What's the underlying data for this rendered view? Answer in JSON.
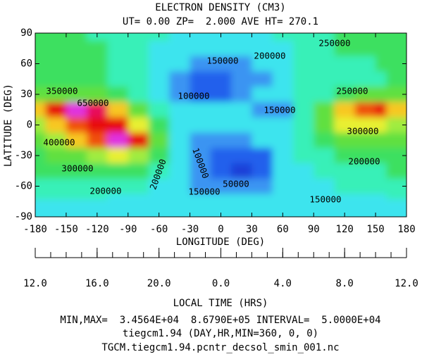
{
  "chart_data": {
    "type": "contour",
    "title": "ELECTRON DENSITY (CM3)",
    "subtitle": "UT= 0.00 ZP=  2.000 AVE HT= 270.1",
    "xlabel": "LONGITUDE (DEG)",
    "ylabel": "LATITUDE (DEG)",
    "x2label": "LOCAL TIME (HRS)",
    "footer": [
      "MIN,MAX=  3.4564E+04  8.6790E+05 INTERVAL=  5.0000E+04",
      "tiegcm1.94 (DAY,HR,MIN=360, 0, 0)",
      "TGCM.tiegcm1.94.pcntr_decsol_smin_001.nc"
    ],
    "xlim": [
      -180,
      180
    ],
    "ylim": [
      -90,
      90
    ],
    "xticks": [
      -180,
      -150,
      -120,
      -90,
      -60,
      -30,
      0,
      30,
      60,
      90,
      120,
      150,
      180
    ],
    "yticks": [
      -90,
      -60,
      -30,
      0,
      30,
      60,
      90
    ],
    "x2ticks": [
      {
        "value": -180,
        "label": "12.0"
      },
      {
        "value": -120,
        "label": "16.0"
      },
      {
        "value": -60,
        "label": "20.0"
      },
      {
        "value": 0,
        "label": "0.0"
      },
      {
        "value": 60,
        "label": "4.0"
      },
      {
        "value": 120,
        "label": "8.0"
      },
      {
        "value": 180,
        "label": "12.0"
      }
    ],
    "x2minorticks": [
      -180,
      -165,
      -150,
      -135,
      -120,
      -105,
      -90,
      -75,
      -60,
      -45,
      -30,
      -15,
      0,
      15,
      30,
      45,
      60,
      75,
      90,
      105,
      120,
      135,
      150,
      165,
      180
    ],
    "levels": [
      50000,
      100000,
      150000,
      200000,
      250000,
      300000,
      350000,
      400000,
      450000,
      500000,
      550000,
      600000,
      650000,
      700000,
      750000,
      800000
    ],
    "colors": [
      "#1a3fd8",
      "#2060ec",
      "#3a94f2",
      "#3ee4ee",
      "#38f0b8",
      "#3ee060",
      "#60e040",
      "#a0ec40",
      "#e8f030",
      "#f8c820",
      "#f89018",
      "#f05010",
      "#e81010",
      "#e8105c",
      "#e820a8",
      "#e030e0",
      "#f060f0"
    ],
    "x": [
      -180,
      -160,
      -140,
      -120,
      -100,
      -80,
      -60,
      -40,
      -20,
      0,
      20,
      40,
      60,
      80,
      100,
      120,
      140,
      160,
      180
    ],
    "y": [
      90,
      75,
      60,
      45,
      30,
      15,
      0,
      -15,
      -30,
      -45,
      -60,
      -75,
      -90
    ],
    "z": [
      [
        270000,
        270000,
        260000,
        240000,
        220000,
        210000,
        200000,
        195000,
        190000,
        185000,
        185000,
        190000,
        200000,
        210000,
        230000,
        250000,
        260000,
        270000,
        270000
      ],
      [
        280000,
        280000,
        270000,
        250000,
        230000,
        210000,
        195000,
        180000,
        170000,
        160000,
        160000,
        170000,
        190000,
        210000,
        230000,
        250000,
        250000,
        260000,
        280000
      ],
      [
        260000,
        260000,
        260000,
        250000,
        230000,
        210000,
        185000,
        150000,
        120000,
        110000,
        120000,
        150000,
        180000,
        200000,
        220000,
        230000,
        240000,
        250000,
        260000
      ],
      [
        280000,
        290000,
        280000,
        260000,
        240000,
        210000,
        170000,
        110000,
        80000,
        80000,
        100000,
        140000,
        175000,
        200000,
        210000,
        220000,
        230000,
        240000,
        280000
      ],
      [
        340000,
        340000,
        330000,
        300000,
        270000,
        230000,
        180000,
        120000,
        95000,
        95000,
        120000,
        160000,
        185000,
        200000,
        220000,
        260000,
        300000,
        320000,
        340000
      ],
      [
        480000,
        640000,
        760000,
        650000,
        450000,
        320000,
        220000,
        180000,
        175000,
        175000,
        165000,
        140000,
        145000,
        200000,
        300000,
        450000,
        560000,
        620000,
        480000
      ],
      [
        380000,
        480000,
        580000,
        640000,
        620000,
        420000,
        260000,
        190000,
        180000,
        180000,
        180000,
        180000,
        190000,
        230000,
        330000,
        400000,
        420000,
        420000,
        380000
      ],
      [
        320000,
        380000,
        450000,
        560000,
        760000,
        600000,
        300000,
        170000,
        130000,
        130000,
        130000,
        170000,
        190000,
        220000,
        290000,
        320000,
        320000,
        320000,
        320000
      ],
      [
        290000,
        320000,
        340000,
        360000,
        400000,
        380000,
        260000,
        160000,
        110000,
        80000,
        50000,
        80000,
        170000,
        200000,
        240000,
        260000,
        260000,
        270000,
        290000
      ],
      [
        250000,
        270000,
        280000,
        290000,
        280000,
        250000,
        200000,
        150000,
        110000,
        80000,
        40000,
        70000,
        160000,
        190000,
        210000,
        220000,
        220000,
        230000,
        250000
      ],
      [
        220000,
        220000,
        220000,
        220000,
        210000,
        200000,
        180000,
        150000,
        130000,
        110000,
        110000,
        140000,
        170000,
        180000,
        190000,
        200000,
        200000,
        210000,
        220000
      ],
      [
        200000,
        200000,
        200000,
        200000,
        195000,
        190000,
        180000,
        170000,
        165000,
        165000,
        170000,
        175000,
        170000,
        160000,
        150000,
        155000,
        170000,
        190000,
        200000
      ],
      [
        190000,
        190000,
        190000,
        190000,
        190000,
        185000,
        180000,
        175000,
        175000,
        175000,
        180000,
        180000,
        175000,
        165000,
        150000,
        155000,
        170000,
        185000,
        190000
      ]
    ],
    "contour_labels": [
      250000,
      150000,
      200000,
      350000,
      650000,
      100000,
      150000,
      250000,
      400000,
      300000,
      300000,
      200000,
      100000,
      50000,
      200000,
      200000,
      150000,
      150000
    ]
  }
}
